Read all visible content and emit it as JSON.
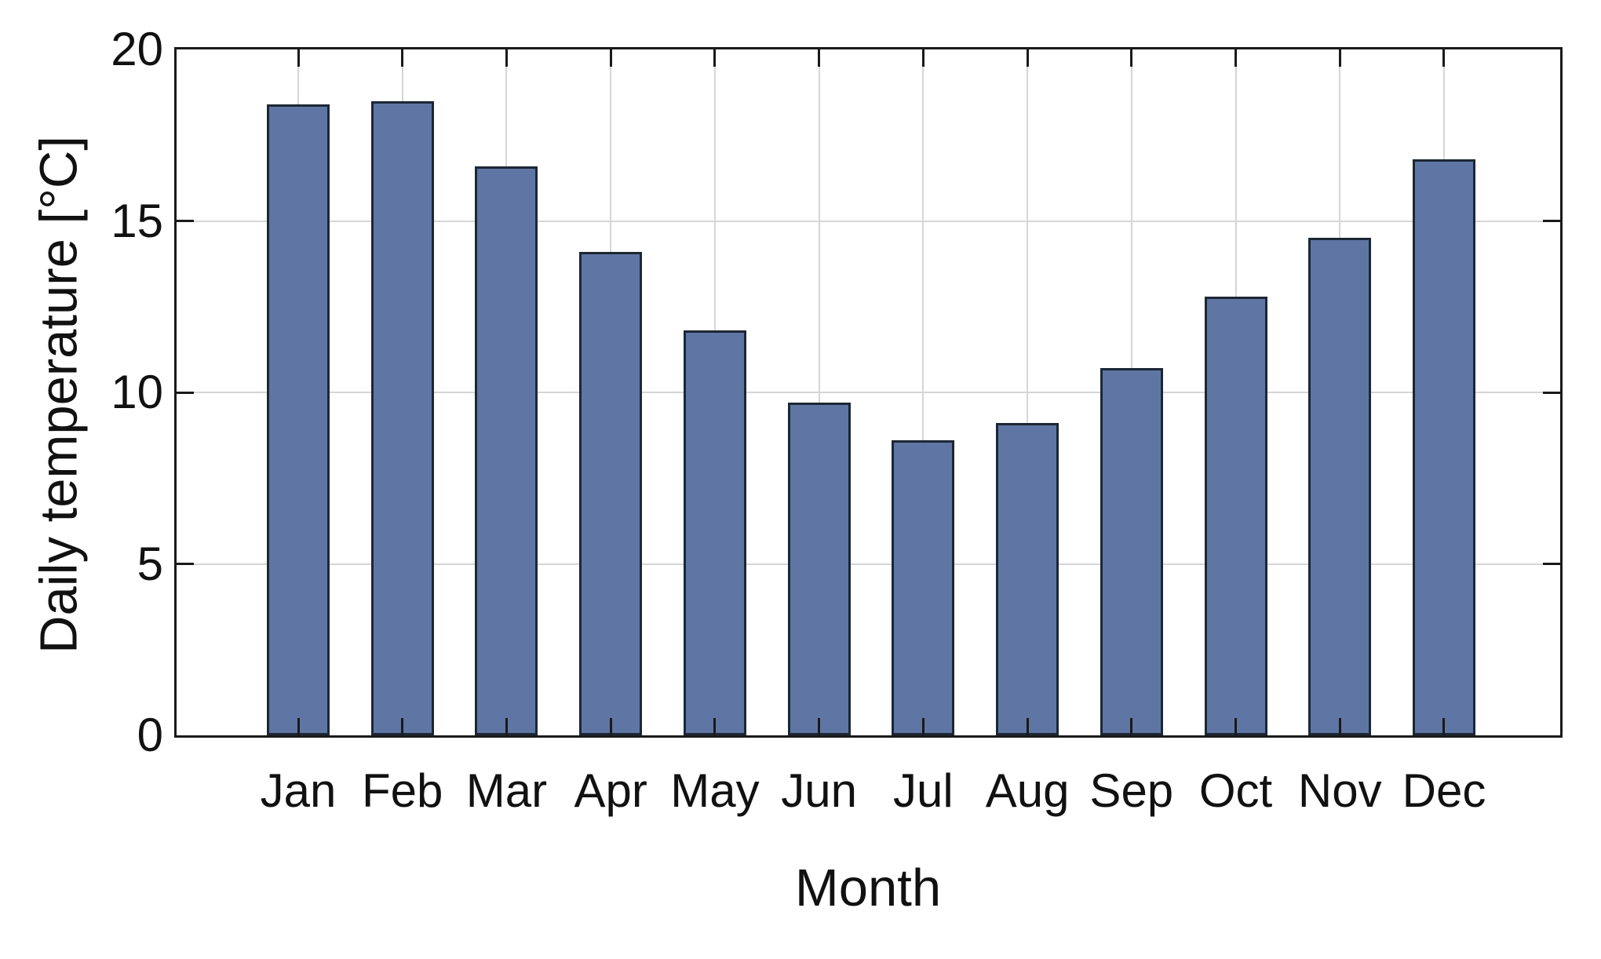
{
  "chart_data": {
    "type": "bar",
    "title": "",
    "xlabel": "Month",
    "ylabel": "Daily temperature [°C]",
    "categories": [
      "Jan",
      "Feb",
      "Mar",
      "Apr",
      "May",
      "Jun",
      "Jul",
      "Aug",
      "Sep",
      "Oct",
      "Nov",
      "Dec"
    ],
    "values": [
      18.4,
      18.5,
      16.6,
      14.1,
      11.8,
      9.7,
      8.6,
      9.1,
      10.7,
      12.8,
      14.5,
      16.8
    ],
    "ylim": [
      0,
      20
    ],
    "yticks": [
      0,
      5,
      10,
      15,
      20
    ],
    "grid": true,
    "legend": false,
    "colors": {
      "bar_fill": "#5f75a4",
      "bar_edge": "#1c2734",
      "gridline": "#d6d6d6",
      "axis_frame": "#1a1a1a",
      "text": "#111111",
      "background": "#ffffff"
    }
  }
}
